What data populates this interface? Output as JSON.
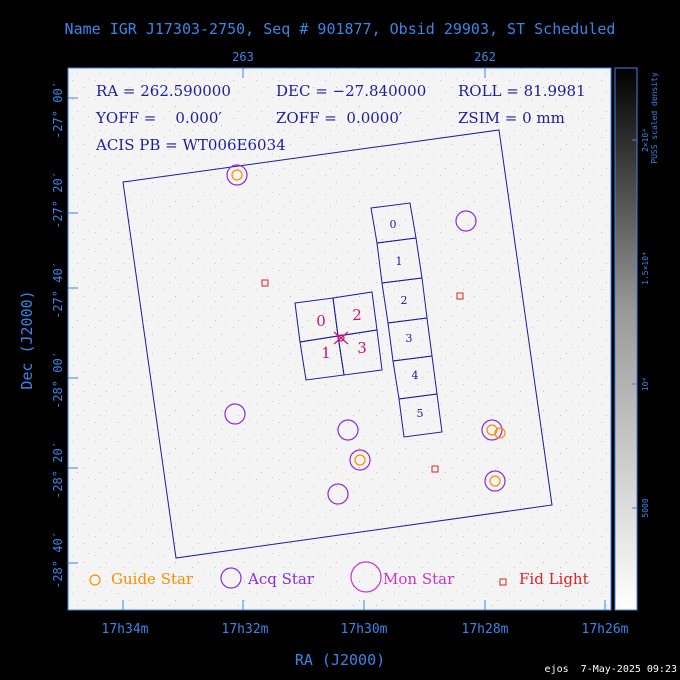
{
  "title": "Name IGR J17303-2750, Seq # 901877, Obsid 29903, ST Scheduled",
  "info": {
    "ra": "RA = 262.590000",
    "dec": "DEC = −27.840000",
    "roll": "ROLL = 81.9981",
    "yoff": "YOFF =    0.000′",
    "zoff": "ZOFF =  0.0000′",
    "zsim": "ZSIM = 0 mm",
    "acis": "ACIS PB = WT006E6034"
  },
  "top_axis_ticks": [
    "263",
    "262"
  ],
  "bottom_axis_ticks": [
    "17h34m",
    "17h32m",
    "17h30m",
    "17h28m",
    "17h26m"
  ],
  "left_axis_ticks": [
    "-27° 00′",
    "-27° 20′",
    "-27° 40′",
    "-28° 00′",
    "-28° 20′",
    "-28° 40′"
  ],
  "xlabel": "RA (J2000)",
  "ylabel": "Dec (J2000)",
  "colorbar": {
    "label": "PUSS scaled density",
    "ticks": [
      "2×10⁴",
      "1.5×10⁴",
      "10⁴",
      "5000"
    ]
  },
  "chips": {
    "acis_i": [
      "0",
      "1",
      "2",
      "3"
    ],
    "acis_s": [
      "0",
      "1",
      "2",
      "3",
      "4",
      "5"
    ]
  },
  "legend": {
    "guide": "Guide Star",
    "acq": "Acq Star",
    "mon": "Mon Star",
    "fid": "Fid Light"
  },
  "footer": "ejos  7-May-2025 09:23",
  "colors": {
    "background": "#000000",
    "text": "#3a86e8",
    "field": "#f4f4f4",
    "outline": "#1c1ca0",
    "guide": "#ff8c00",
    "acq": "#8a2be2",
    "mon": "#cc33cc",
    "fid": "#dd2222",
    "chip_label": "#cc1177"
  }
}
